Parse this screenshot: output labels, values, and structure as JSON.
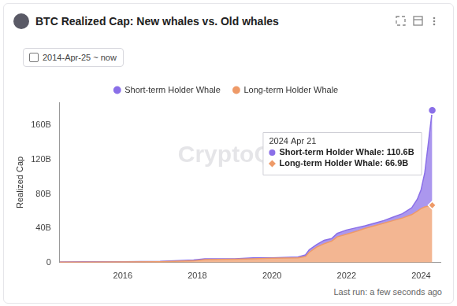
{
  "chart_data": {
    "type": "area",
    "title": "BTC Realized Cap: New whales vs. Old whales",
    "subtitle": "2014-Apr-25 ~ now",
    "y_label": "Realized Cap",
    "watermark": "CryptoQuant",
    "footer": "Last run: a few seconds ago",
    "tooltip": {
      "title": "2024 Apr 21",
      "lines": [
        "Short-term Holder Whale: 110.6B",
        "Long-term Holder Whale: 66.9B"
      ]
    },
    "x": [
      2014.31,
      2015,
      2016,
      2017,
      2017.9,
      2018.2,
      2019,
      2019.5,
      2020,
      2020.7,
      2020.9,
      2021.0,
      2021.2,
      2021.4,
      2021.6,
      2021.75,
      2022.0,
      2022.3,
      2022.5,
      2022.75,
      2023.0,
      2023.25,
      2023.5,
      2023.75,
      2023.9,
      2024.0,
      2024.1,
      2024.2,
      2024.3
    ],
    "series": [
      {
        "name": "Short-term Holder Whale",
        "color": "#8a6fe8",
        "values": [
          0.3,
          0.3,
          0.3,
          0.5,
          1,
          1,
          0.5,
          1,
          0.5,
          1,
          2,
          3,
          3,
          4,
          3,
          4,
          5,
          4,
          3,
          3,
          3,
          4,
          5,
          8,
          14,
          22,
          40,
          75,
          110.6
        ]
      },
      {
        "name": "Long-term Holder Whale",
        "color": "#ee9a68",
        "values": [
          0.5,
          0.6,
          0.7,
          1.0,
          2,
          3.5,
          4,
          4.5,
          5,
          5.5,
          7,
          12,
          18,
          22,
          25,
          30,
          33,
          37,
          40,
          43,
          46,
          49,
          52,
          56,
          60,
          63,
          65,
          66,
          66.9
        ]
      }
    ],
    "xlim": [
      2014.31,
      2024.52
    ],
    "xticks": [
      2016,
      2018,
      2020,
      2022,
      2024
    ],
    "ylim": [
      0,
      187
    ],
    "yticks": [
      0,
      {
        "value": 40,
        "label": "40B"
      },
      {
        "value": 80,
        "label": "80B"
      },
      {
        "value": 120,
        "label": "120B"
      },
      {
        "value": 160,
        "label": "160B"
      }
    ],
    "stacked": true,
    "grid": false,
    "legend": "top"
  }
}
